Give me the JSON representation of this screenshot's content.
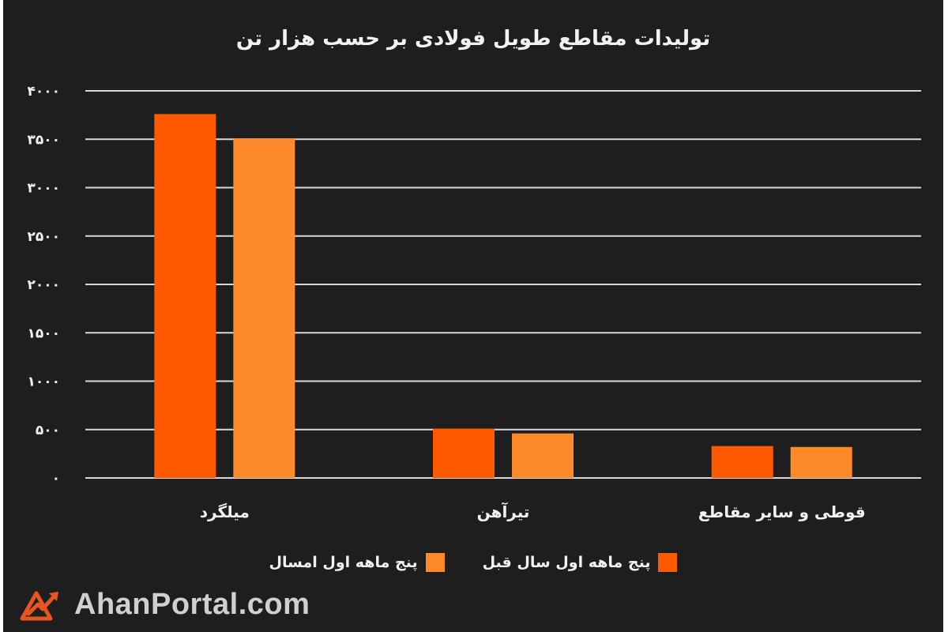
{
  "colors": {
    "background": "#1e1e1e",
    "gridline": "#d9d9d9",
    "text": "#f2f2f2",
    "series_last_year": "#ff5a00",
    "series_this_year": "#ff8a2a",
    "logo": "#e8561e"
  },
  "chart_data": {
    "type": "bar",
    "title": "تولیدات مقاطع طویل فولادی بر حسب هزار تن",
    "categories": [
      "میلگرد",
      "تیرآهن",
      "قوطی و سایر مقاطع"
    ],
    "series": [
      {
        "name": "پنج ماهه اول سال قبل",
        "color": "#ff5a00",
        "values": [
          3760,
          510,
          330
        ]
      },
      {
        "name": "پنج ماهه اول امسال",
        "color": "#ff8a2a",
        "values": [
          3510,
          460,
          320
        ]
      }
    ],
    "ylim": [
      0,
      4000
    ],
    "yticks": [
      0,
      500,
      1000,
      1500,
      2000,
      2500,
      3000,
      3500,
      4000
    ],
    "ytick_labels": [
      "۰",
      "۵۰۰",
      "۱۰۰۰",
      "۱۵۰۰",
      "۲۰۰۰",
      "۲۵۰۰",
      "۳۰۰۰",
      "۳۵۰۰",
      "۴۰۰۰"
    ],
    "grid": true,
    "legend_position": "bottom"
  },
  "brand": {
    "text": "AhanPortal.com",
    "icon": "ahanportal-logo-icon"
  }
}
